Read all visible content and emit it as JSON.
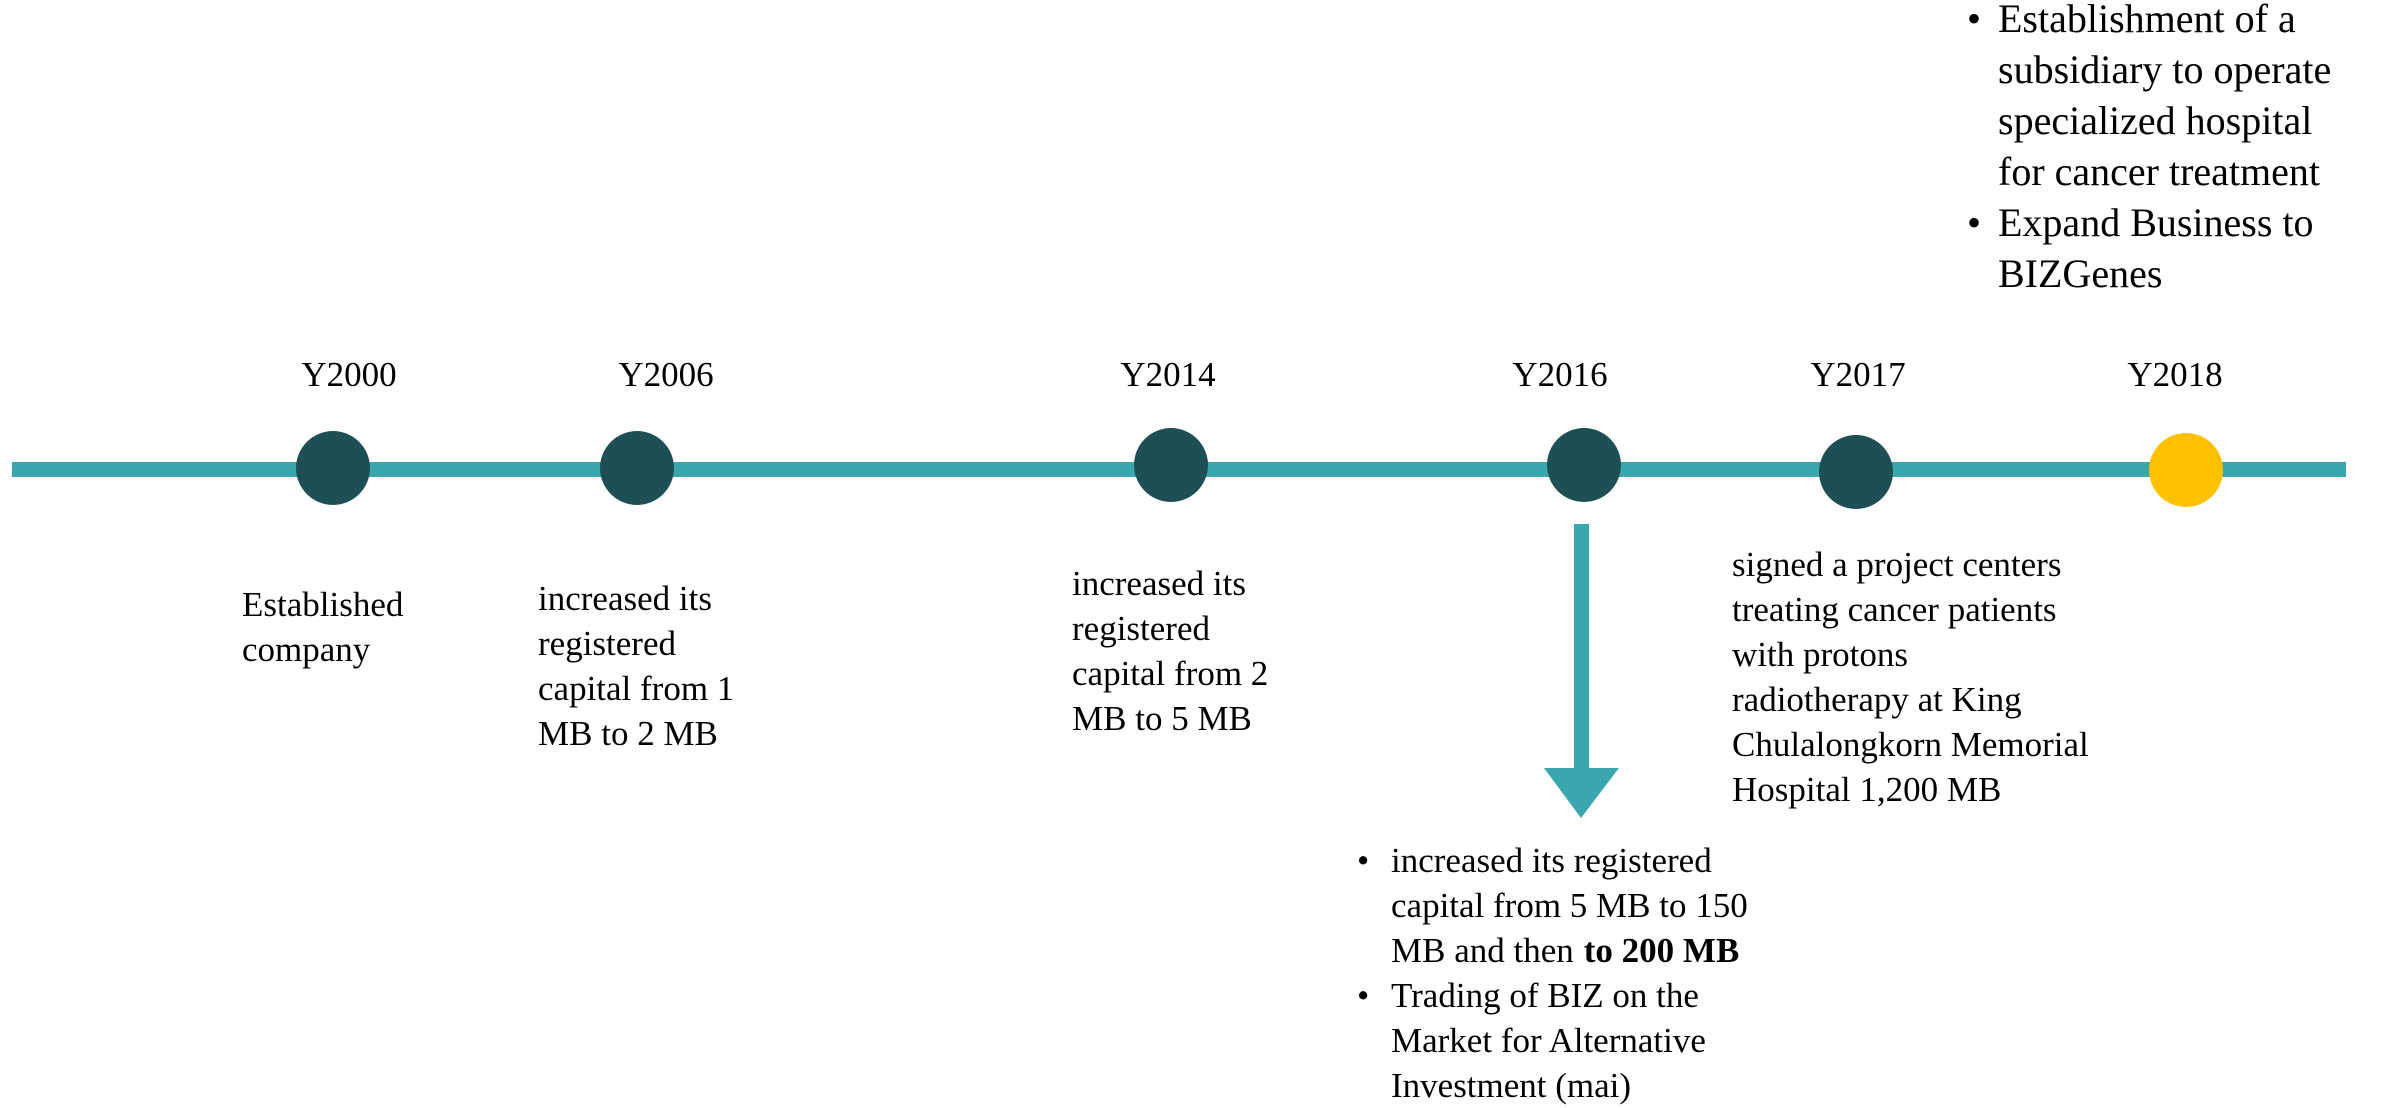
{
  "events": [
    {
      "year": "Y2000",
      "lines": [
        "Established",
        "company"
      ]
    },
    {
      "year": "Y2006",
      "lines": [
        "increased its",
        "registered",
        "capital from 1",
        "MB to 2 MB"
      ]
    },
    {
      "year": "Y2014",
      "lines": [
        "increased its",
        "registered",
        "capital from 2",
        "MB to 5 MB"
      ]
    },
    {
      "year": "Y2016",
      "bullets": [
        {
          "lines": [
            "increased its registered",
            "capital from 5 MB to 150",
            "MB and then"
          ],
          "bold_end": "to 200 MB"
        },
        {
          "lines": [
            "Trading of BIZ on the",
            "Market for Alternative",
            "Investment (mai)"
          ],
          "color": "#2a7bc4"
        }
      ]
    },
    {
      "year": "Y2017",
      "lines": [
        "signed a project centers",
        "treating cancer patients",
        "with protons",
        "radiotherapy at King",
        "Chulalongkorn Memorial",
        "Hospital 1,200 MB"
      ]
    },
    {
      "year": "Y2018",
      "current": true,
      "bullets": [
        {
          "lines": [
            "Establishment of a",
            "subsidiary to operate",
            "specialized hospital",
            "for cancer treatment"
          ],
          "color": "#2a7bc4"
        },
        {
          "lines": [
            "Expand Business to",
            "BIZGenes"
          ]
        }
      ]
    }
  ]
}
